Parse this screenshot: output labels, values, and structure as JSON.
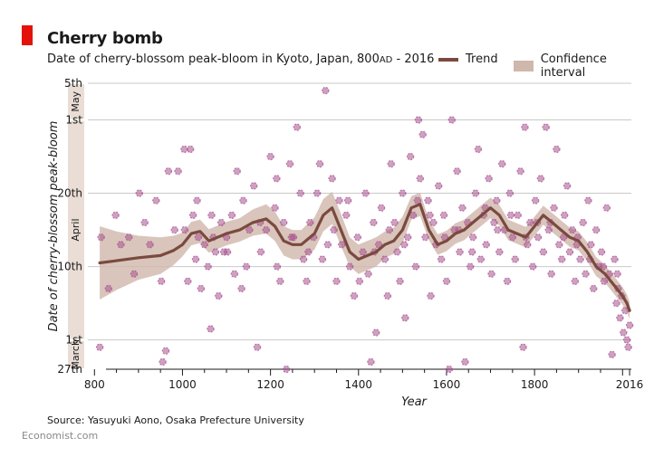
{
  "header": {
    "title": "Cherry bomb",
    "subtitle_main": "Date of cherry-blossom peak-bloom in Kyoto, Japan, 800",
    "subtitle_era": "AD",
    "subtitle_tail": " - 2016"
  },
  "legend": {
    "trend": "Trend",
    "ci": "Confidence interval"
  },
  "footer": {
    "source": "Source: Yasuyuki Aono, Osaka Prefecture University",
    "brand": "Economist.com"
  },
  "colors": {
    "accent": "#e3120b",
    "trend": "#7a4a3e",
    "ci": "#cfb7ab",
    "points": "#a8528e",
    "band": "#e9ddd5"
  },
  "chart_data": {
    "type": "scatter",
    "title": "Cherry bomb",
    "xlabel": "Year",
    "ylabel": "Date of cherry-blossom peak-bloom",
    "xlim": [
      785,
      2020
    ],
    "ylim": [
      -4,
      35
    ],
    "y_units": "day of April (0 = March 31)",
    "x_ticks": [
      800,
      1000,
      1200,
      1400,
      1600,
      1800,
      2016
    ],
    "x_tick_labels": [
      "800",
      "1000",
      "1200",
      "1400",
      "1600",
      "1800",
      "2016"
    ],
    "y_ticks": [
      -4,
      0,
      10,
      20,
      30,
      35
    ],
    "y_tick_labels": [
      "27th",
      "1st",
      "10th",
      "20th",
      "1st",
      "5th"
    ],
    "month_bands": [
      {
        "label": "May",
        "from": 30,
        "to": 35
      },
      {
        "label": "April",
        "from": 0,
        "to": 30
      },
      {
        "label": "March",
        "from": -4,
        "to": 0
      }
    ],
    "trend": {
      "name": "Trend",
      "x": [
        812,
        850,
        900,
        950,
        980,
        1000,
        1020,
        1040,
        1060,
        1080,
        1100,
        1130,
        1160,
        1190,
        1210,
        1230,
        1250,
        1270,
        1300,
        1320,
        1340,
        1360,
        1380,
        1400,
        1420,
        1440,
        1460,
        1480,
        1500,
        1520,
        1540,
        1560,
        1580,
        1600,
        1620,
        1640,
        1660,
        1680,
        1700,
        1720,
        1740,
        1760,
        1780,
        1800,
        1820,
        1840,
        1860,
        1880,
        1900,
        1920,
        1940,
        1960,
        1980,
        2000,
        2010,
        2016
      ],
      "y": [
        10.5,
        10.8,
        11.2,
        11.5,
        12.2,
        13.0,
        14.5,
        14.8,
        13.5,
        14.0,
        14.5,
        15.0,
        16.0,
        16.5,
        15.5,
        13.5,
        13.0,
        13.0,
        14.5,
        17.0,
        18.0,
        15.0,
        12.0,
        11.0,
        11.5,
        12.0,
        13.0,
        13.5,
        15.0,
        18.0,
        18.5,
        15.0,
        13.0,
        13.5,
        14.5,
        15.0,
        16.0,
        17.0,
        18.0,
        17.0,
        15.0,
        14.5,
        14.0,
        15.5,
        17.0,
        16.0,
        15.0,
        14.0,
        13.5,
        12.0,
        10.0,
        9.0,
        7.5,
        6.0,
        5.0,
        4.0
      ],
      "ci_half_width": [
        5.0,
        4.0,
        3.0,
        2.5,
        2.0,
        1.6,
        1.6,
        1.6,
        1.6,
        1.6,
        1.6,
        1.6,
        1.8,
        2.0,
        2.0,
        2.0,
        2.0,
        2.0,
        2.2,
        2.2,
        2.2,
        2.2,
        2.0,
        2.0,
        2.0,
        2.0,
        1.8,
        1.8,
        1.8,
        1.6,
        1.6,
        1.4,
        1.4,
        1.4,
        1.4,
        1.4,
        1.4,
        1.4,
        1.4,
        1.4,
        1.4,
        1.4,
        1.4,
        1.3,
        1.3,
        1.3,
        1.3,
        1.3,
        1.3,
        1.3,
        1.3,
        1.2,
        1.2,
        1.2,
        1.2,
        1.2
      ]
    },
    "points": [
      [
        812,
        -1
      ],
      [
        815,
        14
      ],
      [
        832,
        7
      ],
      [
        848,
        17
      ],
      [
        860,
        13
      ],
      [
        878,
        14
      ],
      [
        890,
        9
      ],
      [
        902,
        20
      ],
      [
        914,
        16
      ],
      [
        926,
        13
      ],
      [
        940,
        19
      ],
      [
        952,
        8
      ],
      [
        955,
        -3
      ],
      [
        962,
        -1.5
      ],
      [
        968,
        23
      ],
      [
        982,
        15
      ],
      [
        990,
        23
      ],
      [
        1004,
        26
      ],
      [
        1012,
        8
      ],
      [
        1018,
        26
      ],
      [
        1024,
        17
      ],
      [
        1030,
        11
      ],
      [
        1036,
        14
      ],
      [
        1042,
        7
      ],
      [
        1050,
        13
      ],
      [
        1058,
        10
      ],
      [
        1064,
        1.5
      ],
      [
        1070,
        14
      ],
      [
        1075,
        12
      ],
      [
        1082,
        6
      ],
      [
        1088,
        16
      ],
      [
        1094,
        12
      ],
      [
        1100,
        14
      ],
      [
        1112,
        17
      ],
      [
        1118,
        9
      ],
      [
        1124,
        23
      ],
      [
        1134,
        7
      ],
      [
        1145,
        10
      ],
      [
        1152,
        15
      ],
      [
        1162,
        21
      ],
      [
        1170,
        -1
      ],
      [
        1178,
        12
      ],
      [
        1190,
        15
      ],
      [
        1200,
        25
      ],
      [
        1210,
        18
      ],
      [
        1215,
        10
      ],
      [
        1222,
        8
      ],
      [
        1230,
        16
      ],
      [
        1236,
        -4
      ],
      [
        1244,
        24
      ],
      [
        1252,
        14
      ],
      [
        1260,
        29
      ],
      [
        1268,
        20
      ],
      [
        1275,
        11
      ],
      [
        1282,
        8
      ],
      [
        1290,
        16
      ],
      [
        1298,
        14
      ],
      [
        1306,
        20
      ],
      [
        1318,
        11
      ],
      [
        1325,
        34
      ],
      [
        1330,
        13
      ],
      [
        1340,
        22
      ],
      [
        1350,
        8
      ],
      [
        1356,
        19
      ],
      [
        1362,
        13
      ],
      [
        1372,
        17
      ],
      [
        1380,
        10
      ],
      [
        1390,
        6
      ],
      [
        1398,
        14
      ],
      [
        1410,
        12
      ],
      [
        1416,
        20
      ],
      [
        1422,
        9
      ],
      [
        1428,
        -3
      ],
      [
        1434,
        16
      ],
      [
        1440,
        1
      ],
      [
        1446,
        13
      ],
      [
        1452,
        18
      ],
      [
        1460,
        11
      ],
      [
        1466,
        6
      ],
      [
        1474,
        24
      ],
      [
        1482,
        16
      ],
      [
        1488,
        12
      ],
      [
        1494,
        8
      ],
      [
        1500,
        20
      ],
      [
        1506,
        3
      ],
      [
        1512,
        14
      ],
      [
        1518,
        25
      ],
      [
        1524,
        17
      ],
      [
        1530,
        10
      ],
      [
        1536,
        30
      ],
      [
        1540,
        22
      ],
      [
        1546,
        28
      ],
      [
        1552,
        14
      ],
      [
        1558,
        19
      ],
      [
        1564,
        6
      ],
      [
        1570,
        16
      ],
      [
        1576,
        13
      ],
      [
        1582,
        21
      ],
      [
        1588,
        11
      ],
      [
        1594,
        17
      ],
      [
        1600,
        8
      ],
      [
        1606,
        -4
      ],
      [
        1612,
        30
      ],
      [
        1618,
        15
      ],
      [
        1624,
        23
      ],
      [
        1630,
        12
      ],
      [
        1636,
        18
      ],
      [
        1642,
        -3
      ],
      [
        1648,
        16
      ],
      [
        1654,
        10
      ],
      [
        1660,
        14
      ],
      [
        1666,
        20
      ],
      [
        1672,
        26
      ],
      [
        1678,
        11
      ],
      [
        1684,
        17
      ],
      [
        1690,
        13
      ],
      [
        1696,
        22
      ],
      [
        1702,
        9
      ],
      [
        1708,
        16
      ],
      [
        1714,
        19
      ],
      [
        1720,
        12
      ],
      [
        1726,
        24
      ],
      [
        1732,
        15
      ],
      [
        1738,
        8
      ],
      [
        1744,
        20
      ],
      [
        1750,
        14
      ],
      [
        1756,
        11
      ],
      [
        1762,
        17
      ],
      [
        1768,
        23
      ],
      [
        1774,
        -1
      ],
      [
        1778,
        29
      ],
      [
        1784,
        13
      ],
      [
        1790,
        16
      ],
      [
        1796,
        10
      ],
      [
        1802,
        19
      ],
      [
        1808,
        14
      ],
      [
        1814,
        22
      ],
      [
        1820,
        12
      ],
      [
        1826,
        29
      ],
      [
        1832,
        15
      ],
      [
        1838,
        9
      ],
      [
        1844,
        18
      ],
      [
        1850,
        26
      ],
      [
        1856,
        13
      ],
      [
        1862,
        11
      ],
      [
        1868,
        17
      ],
      [
        1874,
        21
      ],
      [
        1880,
        12
      ],
      [
        1886,
        15
      ],
      [
        1892,
        8
      ],
      [
        1898,
        14
      ],
      [
        1904,
        11
      ],
      [
        1910,
        16
      ],
      [
        1916,
        9
      ],
      [
        1922,
        19
      ],
      [
        1928,
        13
      ],
      [
        1934,
        7
      ],
      [
        1940,
        15
      ],
      [
        1946,
        10
      ],
      [
        1952,
        12
      ],
      [
        1958,
        8
      ],
      [
        1964,
        18
      ],
      [
        1970,
        9
      ],
      [
        1976,
        -2
      ],
      [
        1982,
        11
      ],
      [
        1986,
        5
      ],
      [
        1990,
        7
      ],
      [
        1994,
        3
      ],
      [
        1998,
        6
      ],
      [
        2002,
        1
      ],
      [
        2006,
        4
      ],
      [
        2010,
        0
      ],
      [
        2013,
        -1
      ],
      [
        2016,
        2
      ],
      [
        1005,
        15
      ],
      [
        1033,
        19
      ],
      [
        1066,
        17
      ],
      [
        1102,
        12
      ],
      [
        1138,
        19
      ],
      [
        1176,
        16
      ],
      [
        1214,
        22
      ],
      [
        1248,
        14
      ],
      [
        1286,
        12
      ],
      [
        1312,
        24
      ],
      [
        1344,
        15
      ],
      [
        1376,
        19
      ],
      [
        1402,
        8
      ],
      [
        1436,
        12
      ],
      [
        1470,
        15
      ],
      [
        1504,
        13
      ],
      [
        1534,
        19
      ],
      [
        1562,
        17
      ],
      [
        1596,
        14
      ],
      [
        1628,
        15
      ],
      [
        1658,
        12
      ],
      [
        1688,
        18
      ],
      [
        1716,
        15
      ],
      [
        1746,
        17
      ],
      [
        1780,
        14
      ],
      [
        1806,
        16
      ],
      [
        1836,
        16
      ],
      [
        1866,
        14
      ],
      [
        1896,
        13
      ],
      [
        1926,
        11
      ],
      [
        1956,
        10
      ],
      [
        1988,
        9
      ]
    ]
  }
}
